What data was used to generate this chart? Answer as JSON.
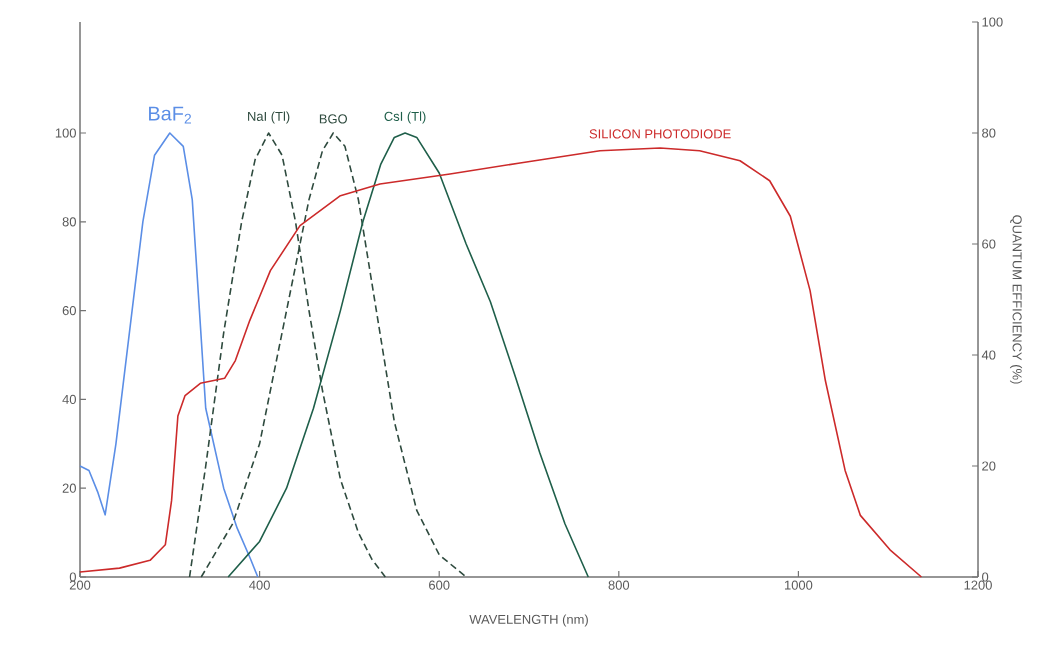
{
  "chart_data": {
    "type": "line",
    "xlabel": "WAVELENGTH (nm)",
    "y2label": "QUANTUM EFFICIENCY (%)",
    "xlim": [
      200,
      1200
    ],
    "xticks": [
      200,
      400,
      600,
      800,
      1000,
      1200
    ],
    "ylim": [
      0,
      125
    ],
    "yticks": [
      0,
      20,
      40,
      60,
      80,
      100
    ],
    "y2lim": [
      0,
      100
    ],
    "y2ticks": [
      0,
      20,
      40,
      60,
      80,
      100
    ],
    "grid": false,
    "legend": false,
    "marker": "none",
    "series": [
      {
        "name": "BaF$_{2}$",
        "color": "#5b8ee6",
        "line_style": "solid",
        "x": [
          200,
          210,
          220,
          228,
          240,
          255,
          270,
          283,
          300,
          315,
          325,
          333,
          340,
          350,
          360,
          375,
          390,
          398
        ],
        "values": [
          25,
          24,
          19,
          14,
          30,
          55,
          80,
          95,
          100,
          97,
          85,
          60,
          38,
          29,
          20,
          11,
          4,
          0
        ]
      },
      {
        "name": "NaI (Tl)",
        "color": "#2e4a3e",
        "line_style": "dashed",
        "x": [
          322,
          340,
          360,
          380,
          395,
          410,
          425,
          440,
          455,
          470,
          490,
          510,
          525,
          540
        ],
        "values": [
          0,
          25,
          55,
          80,
          94,
          100,
          95,
          80,
          60,
          42,
          22,
          10,
          4,
          0
        ]
      },
      {
        "name": "BGO",
        "color": "#2e4a3e",
        "line_style": "dashed",
        "x": [
          335,
          370,
          400,
          430,
          455,
          470,
          482,
          495,
          510,
          530,
          550,
          575,
          600,
          630
        ],
        "values": [
          0,
          12,
          30,
          60,
          85,
          96,
          100,
          97,
          85,
          60,
          35,
          15,
          5,
          0
        ]
      },
      {
        "name": "CsI (Tl)",
        "color": "#1f5f4a",
        "line_style": "solid",
        "x": [
          365,
          400,
          430,
          460,
          490,
          515,
          535,
          550,
          562,
          575,
          600,
          630,
          657,
          685,
          712,
          740,
          766
        ],
        "values": [
          0,
          8,
          20,
          38,
          60,
          80,
          93,
          99,
          100,
          99,
          91,
          75,
          62,
          45,
          28,
          12,
          0
        ]
      },
      {
        "name": "SILICON PHOTODIODE",
        "color": "#cc2a2a",
        "line_style": "solid",
        "axis": "y2",
        "x": [
          200,
          244,
          278,
          295,
          302,
          309,
          317,
          334,
          361,
          373,
          389,
          412,
          445,
          490,
          534,
          612,
          690,
          779,
          846,
          890,
          935,
          968,
          991,
          1013,
          1030,
          1052,
          1069,
          1102,
          1137
        ],
        "values": [
          0.9,
          1.6,
          3,
          5.8,
          13.8,
          29,
          32.7,
          34.9,
          35.8,
          39,
          46.2,
          55.2,
          63.3,
          68.7,
          70.8,
          72.6,
          74.6,
          76.8,
          77.3,
          76.8,
          75,
          71.4,
          65,
          51.6,
          35.4,
          19.2,
          11.1,
          4.9,
          0
        ]
      }
    ]
  }
}
